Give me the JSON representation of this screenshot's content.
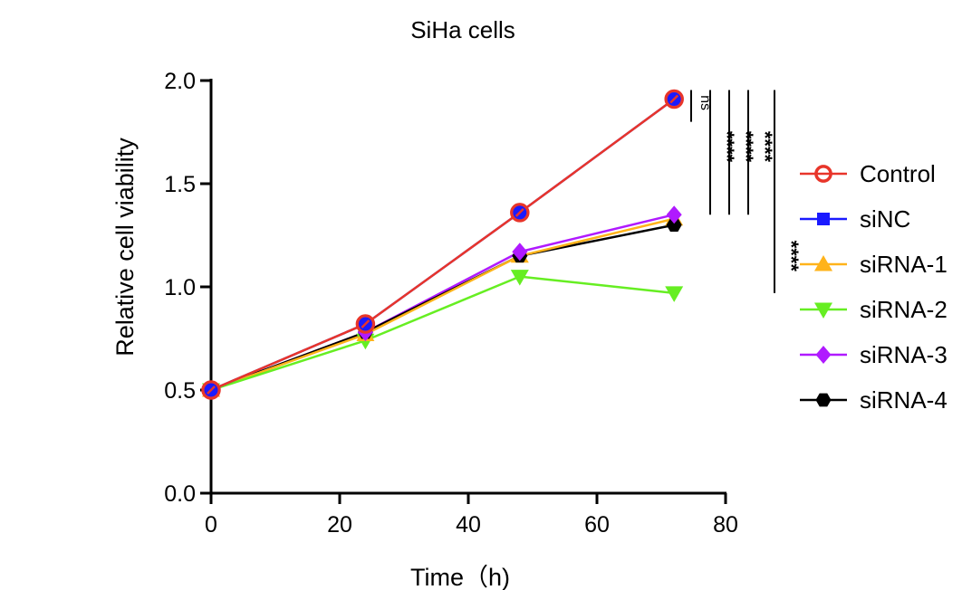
{
  "chart_data": {
    "type": "line",
    "title": "SiHa cells",
    "xlabel": "Time（h)",
    "ylabel": "Relative cell viability",
    "xlim": [
      0,
      80
    ],
    "ylim": [
      0,
      2.0
    ],
    "xticks": [
      0,
      20,
      40,
      60,
      80
    ],
    "yticks": [
      0.0,
      0.5,
      1.0,
      1.5,
      2.0
    ],
    "xtick_labels": [
      "0",
      "20",
      "40",
      "60",
      "80"
    ],
    "ytick_labels": [
      "0.0",
      "0.5",
      "1.0",
      "1.5",
      "2.0"
    ],
    "x": [
      0,
      24,
      48,
      72
    ],
    "series": [
      {
        "name": "Control",
        "values": [
          0.5,
          0.82,
          1.36,
          1.91
        ],
        "color": "#e8352a",
        "marker": "circle-open"
      },
      {
        "name": "siNC",
        "values": [
          0.5,
          0.82,
          1.36,
          1.91
        ],
        "color": "#1a1aff",
        "marker": "square"
      },
      {
        "name": "siRNA-1",
        "values": [
          0.5,
          0.77,
          1.15,
          1.33
        ],
        "color": "#ffb31a",
        "marker": "triangle-up"
      },
      {
        "name": "siRNA-2",
        "values": [
          0.5,
          0.74,
          1.05,
          0.97
        ],
        "color": "#66ee22",
        "marker": "triangle-down"
      },
      {
        "name": "siRNA-3",
        "values": [
          0.5,
          0.78,
          1.17,
          1.35
        ],
        "color": "#b01aff",
        "marker": "diamond"
      },
      {
        "name": "siRNA-4",
        "values": [
          0.5,
          0.78,
          1.15,
          1.3
        ],
        "color": "#000000",
        "marker": "hexagon"
      }
    ],
    "significance": [
      {
        "label": "ns",
        "y_from": 1.91,
        "y_to": 1.8
      },
      {
        "label": "****",
        "y_from": 1.91,
        "y_to": 1.35
      },
      {
        "label": "****",
        "y_from": 1.91,
        "y_to": 1.35
      },
      {
        "label": "****",
        "y_from": 1.91,
        "y_to": 1.35
      },
      {
        "label": "****",
        "y_from": 1.91,
        "y_to": 0.97
      }
    ]
  }
}
